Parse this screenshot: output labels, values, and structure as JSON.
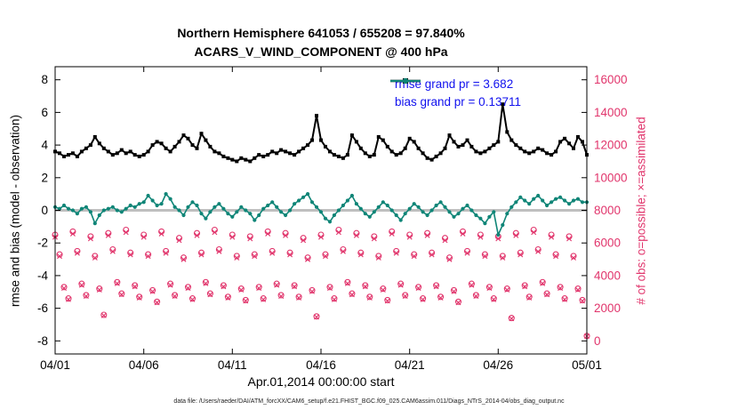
{
  "title": {
    "line1": "Northern Hemisphere 641053 / 655208 = 97.840%",
    "line2": "ACARS_V_WIND_COMPONENT @ 400 hPa"
  },
  "legend": {
    "rmse": {
      "label": "rmse grand pr = 3.682",
      "value": 3.682
    },
    "bias": {
      "label": "bias grand pr = 0.13711",
      "value": 0.13711
    }
  },
  "axes": {
    "ylabel_left": "rmse and bias (model - observation)",
    "ylabel_right": "# of obs: o=possible; ×=assimilated",
    "xlabel": "Apr.01,2014 00:00:00 start",
    "yticks_left": [
      -8,
      -6,
      -4,
      -2,
      0,
      2,
      4,
      6,
      8
    ],
    "yticks_right": [
      0,
      2000,
      4000,
      6000,
      8000,
      10000,
      12000,
      14000,
      16000
    ],
    "xticks": {
      "days": [
        0,
        5,
        10,
        15,
        20,
        25,
        30
      ],
      "labels": [
        "04/01",
        "04/06",
        "04/11",
        "04/16",
        "04/21",
        "04/26",
        "05/01"
      ]
    }
  },
  "caption": "data file: /Users/raeder/DAI/ATM_forcXX/CAM6_setup/f.e21.FHIST_BGC.f09_025.CAM6assim.011/Diags_NTrS_2014-04/obs_diag_output.nc",
  "colors": {
    "rmse": "#000000",
    "bias": "#0f8577",
    "obs": "#e1356c",
    "legend_text": "#1111ee",
    "zero_line": "#bfbfbf"
  },
  "chart_data": {
    "type": "line",
    "title": "Northern Hemisphere 641053 / 655208 = 97.840% — ACARS_V_WIND_COMPONENT @ 400 hPa",
    "x": {
      "start_day": 0,
      "step_days": 0.25,
      "count": 121,
      "start_label": "Apr.01,2014 00:00:00"
    },
    "xlim_days": [
      0,
      30
    ],
    "ylim_left": [
      -8.8,
      8.8
    ],
    "ylim_right_ticks": [
      0,
      16000
    ],
    "legend_position": "upper right inside",
    "grid": false,
    "series": [
      {
        "name": "rmse",
        "axis": "left",
        "style": "line+square",
        "values": [
          3.6,
          3.5,
          3.3,
          3.4,
          3.5,
          3.3,
          3.6,
          3.8,
          4.0,
          4.5,
          4.1,
          3.8,
          3.6,
          3.4,
          3.5,
          3.7,
          3.5,
          3.6,
          3.4,
          3.3,
          3.4,
          3.6,
          4.0,
          4.2,
          4.1,
          3.8,
          3.6,
          3.9,
          4.2,
          4.6,
          4.4,
          4.0,
          3.8,
          4.7,
          4.3,
          3.9,
          3.6,
          3.5,
          3.3,
          3.2,
          3.1,
          3.0,
          3.2,
          3.1,
          3.0,
          3.2,
          3.4,
          3.3,
          3.4,
          3.6,
          3.5,
          3.7,
          3.6,
          3.5,
          3.4,
          3.6,
          3.8,
          4.0,
          4.3,
          5.8,
          4.3,
          3.9,
          3.6,
          3.4,
          3.3,
          3.2,
          3.4,
          4.6,
          4.2,
          3.8,
          3.5,
          3.3,
          3.4,
          4.5,
          4.3,
          3.9,
          3.6,
          3.4,
          3.5,
          3.8,
          4.4,
          4.2,
          3.8,
          3.5,
          3.2,
          3.1,
          3.3,
          3.5,
          3.8,
          4.6,
          4.2,
          3.9,
          4.0,
          4.3,
          3.9,
          3.6,
          3.5,
          3.6,
          3.8,
          4.0,
          4.2,
          6.5,
          4.8,
          4.3,
          4.0,
          3.8,
          3.6,
          3.5,
          3.6,
          3.8,
          3.7,
          3.5,
          3.4,
          3.6,
          4.2,
          4.4,
          4.1,
          3.8,
          4.5,
          4.2,
          3.4
        ]
      },
      {
        "name": "bias",
        "axis": "left",
        "style": "line+circle",
        "values": [
          0.2,
          0.1,
          0.3,
          0.1,
          0.0,
          -0.2,
          0.1,
          0.2,
          -0.1,
          -0.8,
          -0.3,
          0.0,
          0.1,
          0.2,
          0.0,
          -0.1,
          0.1,
          0.3,
          0.2,
          0.4,
          0.5,
          0.9,
          0.6,
          0.3,
          0.4,
          1.0,
          0.7,
          0.2,
          0.0,
          -0.3,
          0.2,
          0.5,
          0.3,
          -0.2,
          -0.5,
          -0.1,
          0.2,
          0.4,
          0.1,
          -0.2,
          -0.4,
          -0.1,
          0.2,
          0.0,
          -0.2,
          -0.6,
          -0.3,
          0.1,
          0.3,
          0.5,
          0.2,
          -0.1,
          -0.3,
          0.0,
          0.4,
          0.6,
          0.8,
          1.0,
          0.5,
          0.2,
          -0.1,
          -0.5,
          -0.7,
          -0.3,
          0.0,
          0.3,
          0.6,
          0.9,
          0.4,
          0.1,
          -0.2,
          -0.4,
          -0.1,
          0.2,
          0.5,
          0.3,
          0.0,
          -0.3,
          -0.6,
          -0.2,
          0.1,
          0.4,
          0.2,
          -0.1,
          -0.3,
          0.0,
          0.3,
          0.5,
          0.2,
          -0.1,
          -0.4,
          -0.2,
          0.1,
          0.3,
          0.0,
          -0.3,
          -0.5,
          -0.8,
          -0.4,
          -0.1,
          -1.5,
          -0.9,
          -0.2,
          0.2,
          0.5,
          0.8,
          0.6,
          0.4,
          0.7,
          0.9,
          0.6,
          0.3,
          0.5,
          0.7,
          0.8,
          0.6,
          0.4,
          0.6,
          0.7,
          0.5,
          0.5
        ]
      },
      {
        "name": "possible_obs",
        "axis": "right",
        "style": "circle-open",
        "values": [
          6500,
          5300,
          3300,
          2600,
          6700,
          5500,
          3500,
          2800,
          6400,
          5200,
          3200,
          1600,
          6600,
          5600,
          3600,
          2900,
          6800,
          5400,
          3400,
          2700,
          6500,
          5300,
          3100,
          2400,
          6700,
          5500,
          3500,
          2800,
          6300,
          5100,
          3300,
          2600,
          6600,
          5400,
          3600,
          2900,
          6800,
          5600,
          3400,
          2700,
          6500,
          5200,
          3200,
          2500,
          6400,
          5300,
          3300,
          2600,
          6700,
          5500,
          3500,
          2800,
          6600,
          5400,
          3400,
          2700,
          6300,
          5100,
          3100,
          1500,
          6500,
          5300,
          3300,
          2600,
          6800,
          5600,
          3600,
          2900,
          6600,
          5400,
          3400,
          2700,
          6400,
          5200,
          3200,
          2500,
          6700,
          5500,
          3500,
          2800,
          6500,
          5300,
          3300,
          2600,
          6600,
          5400,
          3400,
          2700,
          6300,
          5100,
          3100,
          2400,
          6700,
          5500,
          3500,
          2800,
          6500,
          5300,
          3300,
          2600,
          6400,
          5200,
          3200,
          1400,
          6600,
          5400,
          3400,
          2700,
          6800,
          5600,
          3600,
          2900,
          6500,
          5300,
          3300,
          2600,
          6400,
          5200,
          3200,
          2500,
          300
        ]
      },
      {
        "name": "assimilated_obs",
        "axis": "right",
        "style": "x",
        "values": [
          6360,
          5190,
          3230,
          2540,
          6560,
          5380,
          3420,
          2740,
          6260,
          5090,
          3130,
          1560,
          6460,
          5480,
          3520,
          2840,
          6650,
          5280,
          3330,
          2640,
          6360,
          5190,
          3030,
          2350,
          6560,
          5380,
          3420,
          2740,
          6160,
          4990,
          3230,
          2540,
          6460,
          5280,
          3520,
          2840,
          6650,
          5480,
          3330,
          2640,
          6360,
          5090,
          3130,
          2450,
          6260,
          5190,
          3230,
          2540,
          6560,
          5380,
          3420,
          2740,
          6460,
          5280,
          3330,
          2640,
          6160,
          4990,
          3030,
          1460,
          6360,
          5190,
          3230,
          2540,
          6650,
          5480,
          3520,
          2840,
          6460,
          5280,
          3330,
          2640,
          6260,
          5090,
          3130,
          2450,
          6560,
          5380,
          3420,
          2740,
          6360,
          5190,
          3230,
          2540,
          6460,
          5280,
          3330,
          2640,
          6160,
          4990,
          3030,
          2350,
          6560,
          5380,
          3420,
          2740,
          6360,
          5190,
          3230,
          2540,
          6260,
          5090,
          3130,
          1370,
          6460,
          5280,
          3330,
          2640,
          6650,
          5480,
          3520,
          2840,
          6360,
          5190,
          3230,
          2540,
          6260,
          5090,
          3130,
          2450,
          290
        ]
      }
    ]
  }
}
